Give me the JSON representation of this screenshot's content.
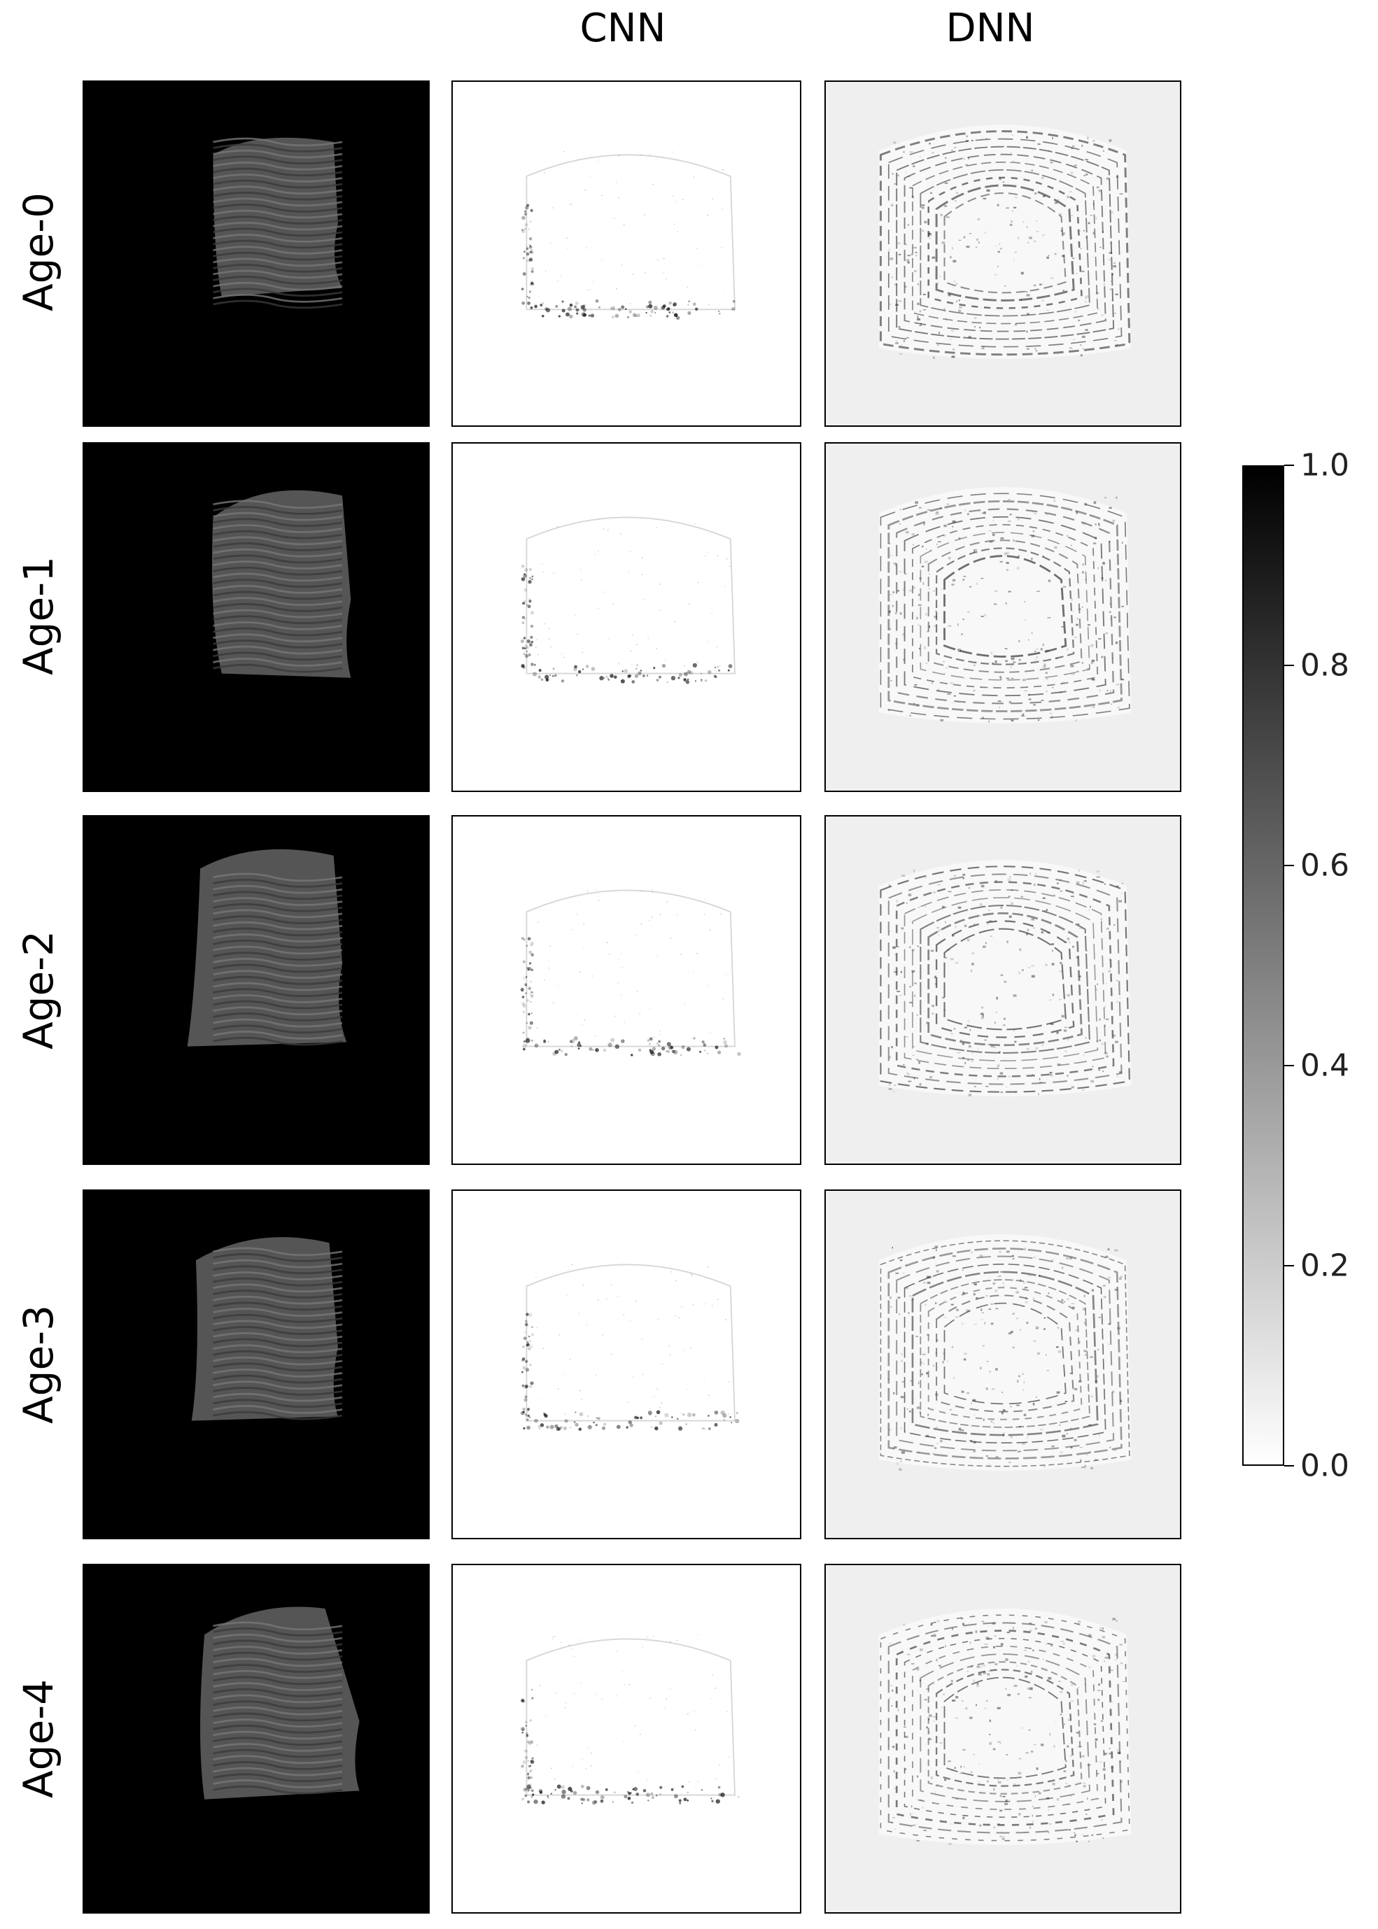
{
  "columns": [
    "",
    "CNN",
    "DNN"
  ],
  "rows": [
    "Age-0",
    "Age-1",
    "Age-2",
    "Age-3",
    "Age-4"
  ],
  "colorbar": {
    "range": [
      0.0,
      1.0
    ],
    "ticks": [
      "1.0",
      "0.8",
      "0.6",
      "0.4",
      "0.2",
      "0.0"
    ],
    "gradient": [
      "#000000",
      "#ffffff"
    ]
  }
}
